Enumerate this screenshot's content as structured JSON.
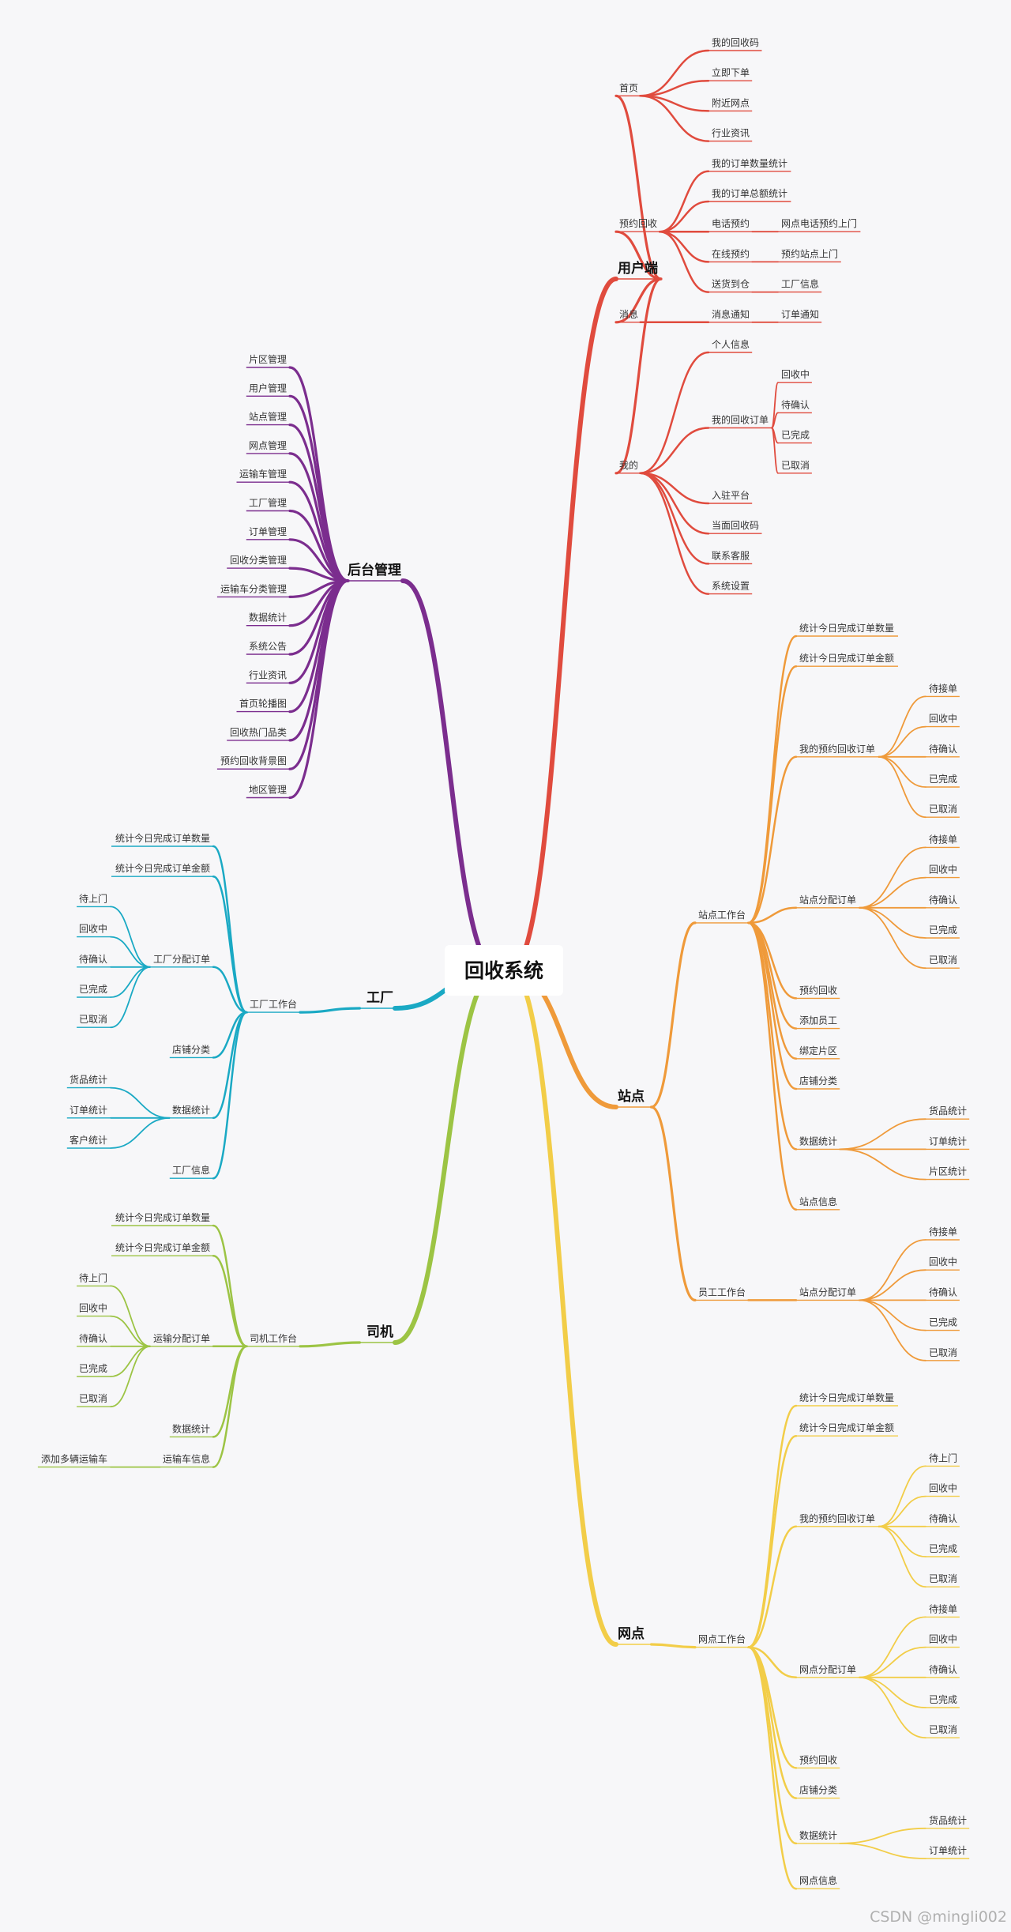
{
  "root": "回收系统",
  "watermark": "CSDN @mingli002",
  "branches": [
    {
      "id": "user",
      "label": "用户端",
      "color": "#e04b3e",
      "children": [
        {
          "label": "首页",
          "children": [
            {
              "label": "我的回收码"
            },
            {
              "label": "立即下单"
            },
            {
              "label": "附近网点"
            },
            {
              "label": "行业资讯"
            }
          ]
        },
        {
          "label": "预约回收",
          "children": [
            {
              "label": "我的订单数量统计"
            },
            {
              "label": "我的订单总额统计"
            },
            {
              "label": "电话预约",
              "children": [
                {
                  "label": "网点电话预约上门"
                }
              ]
            },
            {
              "label": "在线预约",
              "children": [
                {
                  "label": "预约站点上门"
                }
              ]
            },
            {
              "label": "送货到仓",
              "children": [
                {
                  "label": "工厂信息"
                }
              ]
            }
          ]
        },
        {
          "label": "消息",
          "children": [
            {
              "label": "消息通知",
              "children": [
                {
                  "label": "订单通知"
                }
              ]
            }
          ]
        },
        {
          "label": "我的",
          "children": [
            {
              "label": "个人信息"
            },
            {
              "label": "我的回收订单",
              "children": [
                {
                  "label": "回收中"
                },
                {
                  "label": "待确认"
                },
                {
                  "label": "已完成"
                },
                {
                  "label": "已取消"
                }
              ]
            },
            {
              "label": "入驻平台"
            },
            {
              "label": "当面回收码"
            },
            {
              "label": "联系客服"
            },
            {
              "label": "系统设置"
            }
          ]
        }
      ]
    },
    {
      "id": "station",
      "label": "站点",
      "color": "#ef9a3a",
      "children": [
        {
          "label": "站点工作台",
          "children": [
            {
              "label": "统计今日完成订单数量"
            },
            {
              "label": "统计今日完成订单金额"
            },
            {
              "label": "我的预约回收订单",
              "children": [
                {
                  "label": "待接单"
                },
                {
                  "label": "回收中"
                },
                {
                  "label": "待确认"
                },
                {
                  "label": "已完成"
                },
                {
                  "label": "已取消"
                }
              ]
            },
            {
              "label": "站点分配订单",
              "children": [
                {
                  "label": "待接单"
                },
                {
                  "label": "回收中"
                },
                {
                  "label": "待确认"
                },
                {
                  "label": "已完成"
                },
                {
                  "label": "已取消"
                }
              ]
            },
            {
              "label": "预约回收"
            },
            {
              "label": "添加员工"
            },
            {
              "label": "绑定片区"
            },
            {
              "label": "店铺分类"
            },
            {
              "label": "数据统计",
              "children": [
                {
                  "label": "货品统计"
                },
                {
                  "label": "订单统计"
                },
                {
                  "label": "片区统计"
                }
              ]
            },
            {
              "label": "站点信息"
            }
          ]
        },
        {
          "label": "员工工作台",
          "children": [
            {
              "label": "站点分配订单",
              "children": [
                {
                  "label": "待接单"
                },
                {
                  "label": "回收中"
                },
                {
                  "label": "待确认"
                },
                {
                  "label": "已完成"
                },
                {
                  "label": "已取消"
                }
              ]
            }
          ]
        }
      ]
    },
    {
      "id": "outlet",
      "label": "网点",
      "color": "#f2cd48",
      "children": [
        {
          "label": "网点工作台",
          "children": [
            {
              "label": "统计今日完成订单数量"
            },
            {
              "label": "统计今日完成订单金额"
            },
            {
              "label": "我的预约回收订单",
              "children": [
                {
                  "label": "待上门"
                },
                {
                  "label": "回收中"
                },
                {
                  "label": "待确认"
                },
                {
                  "label": "已完成"
                },
                {
                  "label": "已取消"
                }
              ]
            },
            {
              "label": "网点分配订单",
              "children": [
                {
                  "label": "待接单"
                },
                {
                  "label": "回收中"
                },
                {
                  "label": "待确认"
                },
                {
                  "label": "已完成"
                },
                {
                  "label": "已取消"
                }
              ]
            },
            {
              "label": "预约回收"
            },
            {
              "label": "店铺分类"
            },
            {
              "label": "数据统计",
              "children": [
                {
                  "label": "货品统计"
                },
                {
                  "label": "订单统计"
                }
              ]
            },
            {
              "label": "网点信息"
            }
          ]
        }
      ]
    },
    {
      "id": "admin",
      "label": "后台管理",
      "color": "#7b2d8e",
      "children": [
        {
          "label": "片区管理"
        },
        {
          "label": "用户管理"
        },
        {
          "label": "站点管理"
        },
        {
          "label": "网点管理"
        },
        {
          "label": "运输车管理"
        },
        {
          "label": "工厂管理"
        },
        {
          "label": "订单管理"
        },
        {
          "label": "回收分类管理"
        },
        {
          "label": "运输车分类管理"
        },
        {
          "label": "数据统计"
        },
        {
          "label": "系统公告"
        },
        {
          "label": "行业资讯"
        },
        {
          "label": "首页轮播图"
        },
        {
          "label": "回收热门品类"
        },
        {
          "label": "预约回收背景图"
        },
        {
          "label": "地区管理"
        }
      ]
    },
    {
      "id": "factory",
      "label": "工厂",
      "color": "#1aa9c4",
      "children": [
        {
          "label": "工厂工作台",
          "children": [
            {
              "label": "统计今日完成订单数量"
            },
            {
              "label": "统计今日完成订单金额"
            },
            {
              "label": "工厂分配订单",
              "children": [
                {
                  "label": "待上门"
                },
                {
                  "label": "回收中"
                },
                {
                  "label": "待确认"
                },
                {
                  "label": "已完成"
                },
                {
                  "label": "已取消"
                }
              ]
            },
            {
              "label": "店铺分类"
            },
            {
              "label": "数据统计",
              "children": [
                {
                  "label": "货品统计"
                },
                {
                  "label": "订单统计"
                },
                {
                  "label": "客户统计"
                }
              ]
            },
            {
              "label": "工厂信息"
            }
          ]
        }
      ]
    },
    {
      "id": "driver",
      "label": "司机",
      "color": "#9cc444",
      "children": [
        {
          "label": "司机工作台",
          "children": [
            {
              "label": "统计今日完成订单数量"
            },
            {
              "label": "统计今日完成订单金额"
            },
            {
              "label": "运输分配订单",
              "children": [
                {
                  "label": "待上门"
                },
                {
                  "label": "回收中"
                },
                {
                  "label": "待确认"
                },
                {
                  "label": "已完成"
                },
                {
                  "label": "已取消"
                }
              ]
            },
            {
              "label": "数据统计"
            },
            {
              "label": "运输车信息",
              "children": [
                {
                  "label": "添加多辆运输车"
                }
              ]
            }
          ]
        }
      ]
    }
  ]
}
